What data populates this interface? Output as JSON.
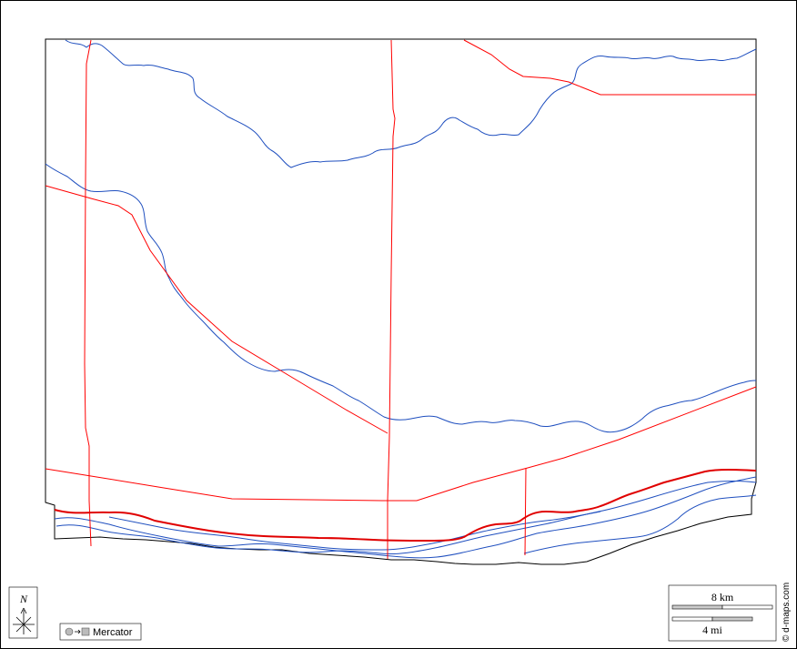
{
  "map": {
    "colors": {
      "border": "#000000",
      "river": "#1f4fbf",
      "road": "#ff0000",
      "main_road": "#e00000"
    }
  },
  "compass": {
    "north_label": "N",
    "icon": "compass-rose-icon"
  },
  "projection": {
    "label": "Mercator",
    "icon": "projection-icon"
  },
  "scale": {
    "km_label": "8 km",
    "mi_label": "4 mi"
  },
  "credit": {
    "text": "© d-maps.com"
  }
}
